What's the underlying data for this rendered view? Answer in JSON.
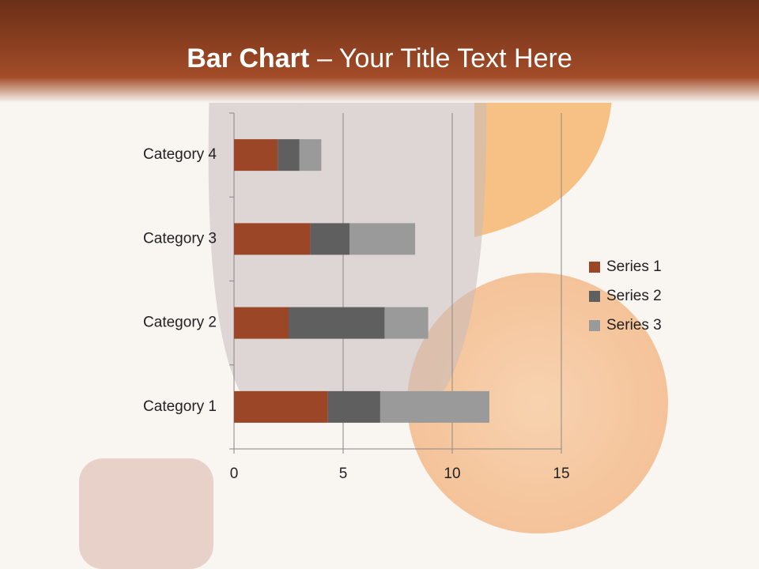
{
  "chart_data": {
    "type": "stacked_barh",
    "title_bold": "Bar Chart",
    "title": "– Your Title Text Here",
    "categories": [
      "Category 1",
      "Category 2",
      "Category 3",
      "Category 4"
    ],
    "series": [
      {
        "name": "Series 1",
        "color": "#9b4727",
        "values": [
          4.3,
          2.5,
          3.5,
          2
        ]
      },
      {
        "name": "Series 2",
        "color": "#5f5f5f",
        "values": [
          2.4,
          4.4,
          1.8,
          1
        ]
      },
      {
        "name": "Series 3",
        "color": "#9a9a9a",
        "values": [
          5,
          2,
          3,
          1
        ]
      }
    ],
    "xlim": [
      0,
      15
    ],
    "xticks": [
      0,
      5,
      10,
      15
    ],
    "grid": true,
    "legend": "right"
  }
}
